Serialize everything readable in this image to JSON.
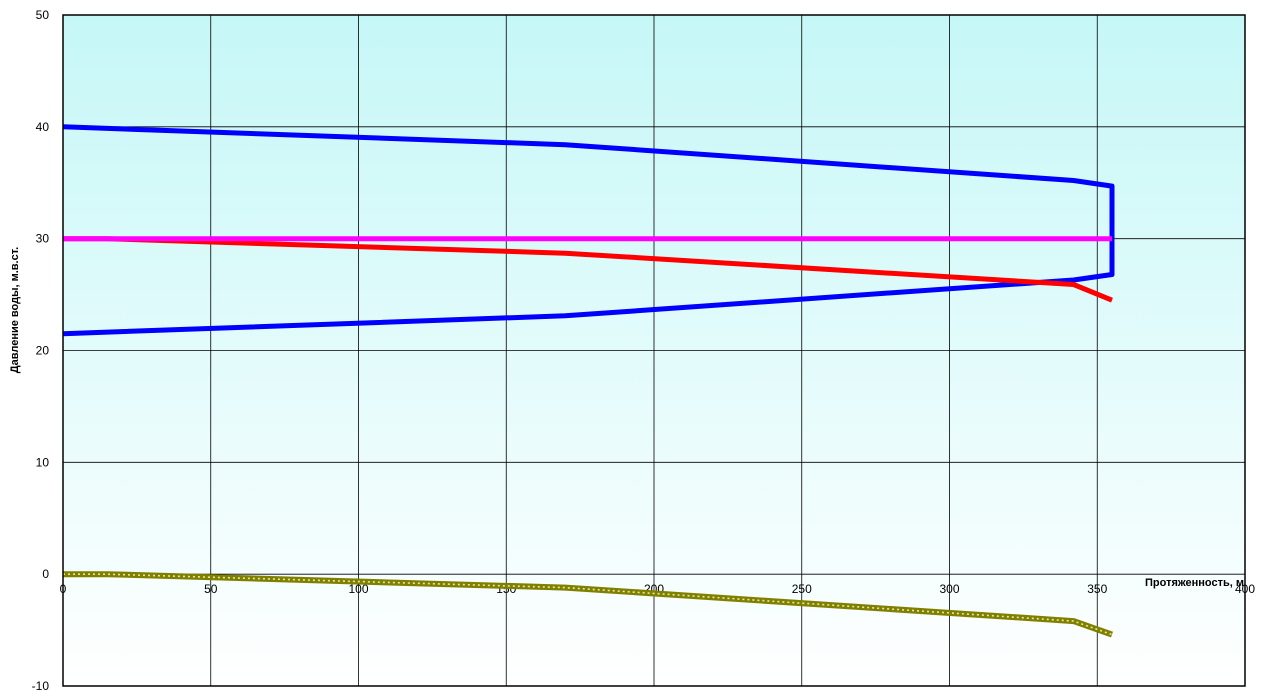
{
  "chart_data": {
    "type": "line",
    "title": "",
    "xlabel": "Протяженность, м",
    "ylabel": "Давление воды, м.в.ст.",
    "xlim": [
      0,
      400
    ],
    "ylim": [
      -10,
      50
    ],
    "x_ticks": [
      0,
      50,
      100,
      150,
      200,
      250,
      300,
      350,
      400
    ],
    "y_ticks": [
      -10,
      0,
      10,
      20,
      30,
      40,
      50
    ],
    "grid": true,
    "legend": "none",
    "background_gradient": [
      "#c6f7f7",
      "#ffffff"
    ],
    "series": [
      {
        "color": "#0000ff",
        "style": "solid",
        "points": [
          [
            0,
            40
          ],
          [
            170,
            38.4
          ],
          [
            342,
            35.2
          ],
          [
            355,
            34.7
          ],
          [
            355,
            26.8
          ],
          [
            342,
            26.3
          ],
          [
            170,
            23.1
          ],
          [
            0,
            21.5
          ]
        ]
      },
      {
        "color": "#ff0000",
        "style": "solid",
        "points": [
          [
            0,
            30
          ],
          [
            15,
            30
          ],
          [
            170,
            28.7
          ],
          [
            342,
            25.9
          ],
          [
            355,
            24.5
          ]
        ]
      },
      {
        "color": "#ff00ff",
        "style": "solid",
        "points": [
          [
            0,
            30
          ],
          [
            355,
            30
          ]
        ]
      },
      {
        "color": "#808000",
        "style": "dotted",
        "points": [
          [
            0,
            0
          ],
          [
            15,
            0
          ],
          [
            170,
            -1.2
          ],
          [
            342,
            -4.2
          ],
          [
            355,
            -5.4
          ]
        ]
      }
    ]
  }
}
